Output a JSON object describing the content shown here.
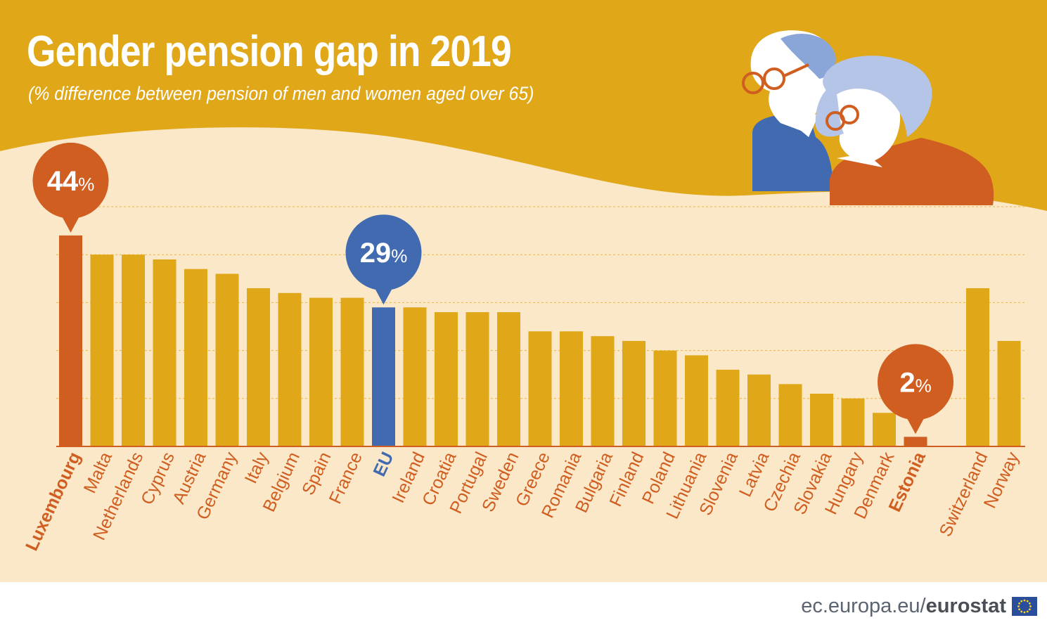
{
  "title": "Gender pension gap in 2019",
  "subtitle": "(% difference between pension of men and women aged over 65)",
  "colors": {
    "background_top": "#e0a719",
    "background_chart": "#fbe8c9",
    "bar_default": "#e0a719",
    "bar_max_min": "#cf5e20",
    "bar_eu": "#416ab0",
    "label_default": "#cf5e20",
    "label_eu": "#416ab0"
  },
  "chart_data": {
    "type": "bar",
    "title": "Gender pension gap in 2019",
    "subtitle": "(% difference between pension of men and women aged over 65)",
    "xlabel": "",
    "ylabel": "",
    "ylim": [
      0,
      50
    ],
    "grid": true,
    "categories": [
      "Luxembourg",
      "Malta",
      "Netherlands",
      "Cyprus",
      "Austria",
      "Germany",
      "Italy",
      "Belgium",
      "Spain",
      "France",
      "EU",
      "Ireland",
      "Croatia",
      "Portugal",
      "Sweden",
      "Greece",
      "Romania",
      "Bulgaria",
      "Finland",
      "Poland",
      "Lithuania",
      "Slovenia",
      "Latvia",
      "Czechia",
      "Slovakia",
      "Hungary",
      "Denmark",
      "Estonia",
      "Switzerland",
      "Norway"
    ],
    "values": [
      44,
      40,
      40,
      39,
      37,
      36,
      33,
      32,
      31,
      31,
      29,
      29,
      28,
      28,
      28,
      24,
      24,
      23,
      22,
      20,
      19,
      16,
      15,
      13,
      11,
      10,
      7,
      2,
      33,
      22
    ],
    "highlight": {
      "Luxembourg": "max",
      "EU": "eu",
      "Estonia": "min"
    },
    "callouts": [
      {
        "category": "Luxembourg",
        "number": "44",
        "unit": "%"
      },
      {
        "category": "EU",
        "number": "29",
        "unit": "%"
      },
      {
        "category": "Estonia",
        "number": "2",
        "unit": "%"
      }
    ]
  },
  "footer": {
    "domain": "ec.europa.eu/",
    "brand": "eurostat"
  },
  "icons": [
    "elderly-couple-illustration-icon",
    "eu-flag-icon"
  ]
}
